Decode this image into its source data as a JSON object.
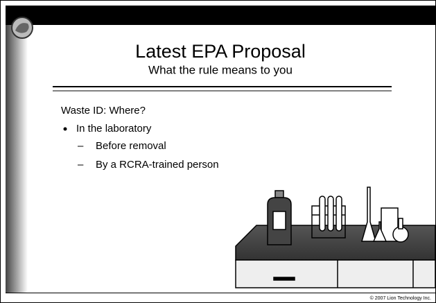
{
  "header": {
    "title": "Latest EPA Proposal",
    "subtitle": "What the rule means to you"
  },
  "body": {
    "heading": "Waste ID: Where?",
    "bullets": [
      {
        "text": "In the laboratory",
        "items": [
          "Before removal",
          "By a RCRA-trained person"
        ]
      }
    ]
  },
  "footer": "© 2007 Lion Technology Inc."
}
